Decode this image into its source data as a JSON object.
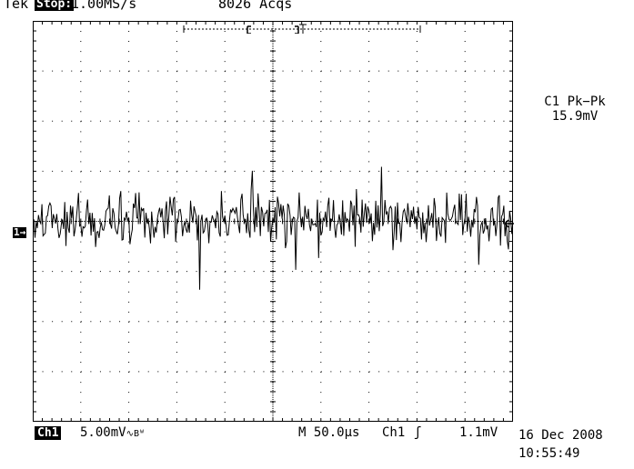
{
  "status": {
    "brand": "Tek",
    "run_state": "Stop:",
    "sample_rate": "1.00MS/s",
    "acquisitions": "8026 Acqs"
  },
  "measurement": {
    "label": "C1 Pk−Pk",
    "value": "15.9mV"
  },
  "channel_marker": "1→",
  "bottom": {
    "channel": "Ch1",
    "vertical_scale": "5.00mV",
    "bandwidth_symbol": "∿Bᵂ",
    "timebase": "M 50.0µs",
    "trigger_source": "Ch1",
    "trigger_slope": "ʃ",
    "trigger_level": "1.1mV",
    "date": "16 Dec 2008",
    "time": "10:55:49"
  },
  "colors": {
    "background": "#ffffff",
    "trace": "#000000",
    "grid": "#000000"
  }
}
